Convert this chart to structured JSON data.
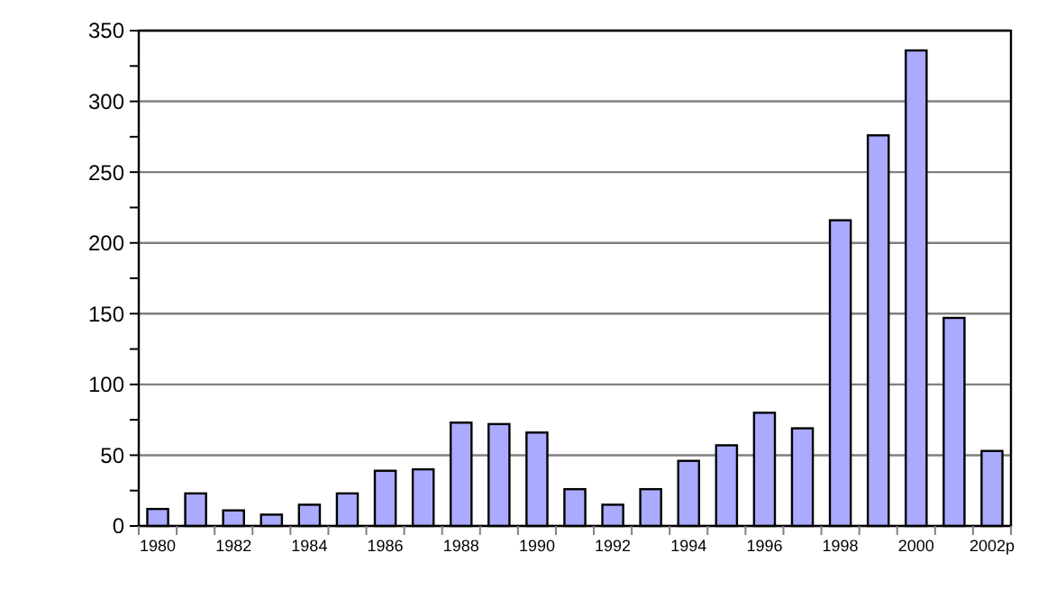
{
  "chart_data": {
    "type": "bar",
    "categories": [
      "1980",
      null,
      "1982",
      null,
      "1984",
      null,
      "1986",
      null,
      "1988",
      null,
      "1990",
      null,
      "1992",
      null,
      "1994",
      null,
      "1996",
      null,
      "1998",
      null,
      "2000",
      null,
      "2002p"
    ],
    "values": [
      12,
      23,
      11,
      8,
      15,
      23,
      39,
      40,
      73,
      72,
      66,
      26,
      15,
      26,
      46,
      57,
      80,
      69,
      216,
      276,
      336,
      147,
      53
    ],
    "color": "#aaaaff",
    "ylim": [
      0,
      350
    ],
    "yticks": [
      0,
      {
        "value": 25,
        "label": null
      },
      50,
      {
        "value": 75,
        "label": null
      },
      100,
      {
        "value": 125,
        "label": null
      },
      150,
      {
        "value": 175,
        "label": null
      },
      200,
      {
        "value": 225,
        "label": null
      },
      250,
      {
        "value": 275,
        "label": null
      },
      300,
      {
        "value": 325,
        "label": null
      },
      350
    ],
    "grid": "y"
  }
}
